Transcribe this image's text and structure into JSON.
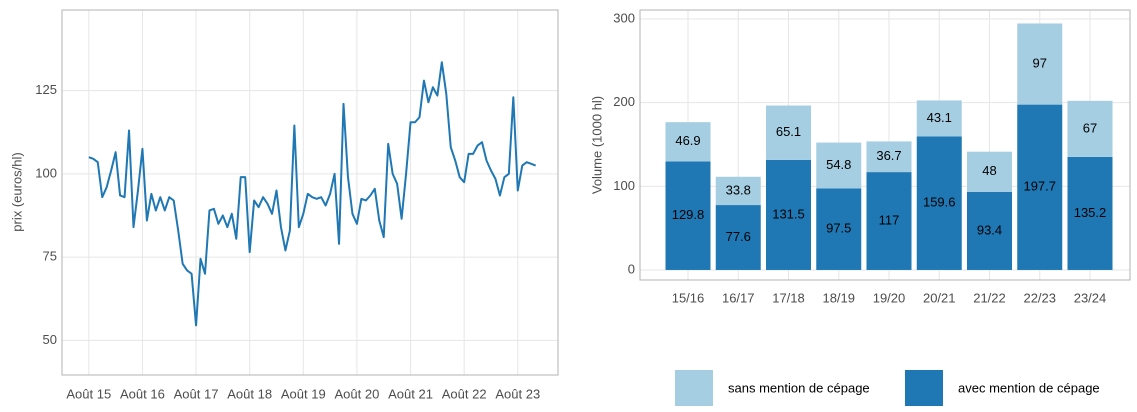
{
  "chart_data": [
    {
      "type": "line",
      "ylabel": "prix (euros/hl)",
      "x": [
        "2015-08",
        "2015-09",
        "2015-10",
        "2015-11",
        "2015-12",
        "2016-01",
        "2016-02",
        "2016-03",
        "2016-04",
        "2016-05",
        "2016-06",
        "2016-07",
        "2016-08",
        "2016-09",
        "2016-10",
        "2016-11",
        "2016-12",
        "2017-01",
        "2017-02",
        "2017-03",
        "2017-04",
        "2017-05",
        "2017-06",
        "2017-07",
        "2017-08",
        "2017-09",
        "2017-10",
        "2017-11",
        "2017-12",
        "2018-01",
        "2018-02",
        "2018-03",
        "2018-04",
        "2018-05",
        "2018-06",
        "2018-07",
        "2018-08",
        "2018-09",
        "2018-10",
        "2018-11",
        "2018-12",
        "2019-01",
        "2019-02",
        "2019-03",
        "2019-04",
        "2019-05",
        "2019-06",
        "2019-07",
        "2019-08",
        "2019-09",
        "2019-10",
        "2019-11",
        "2019-12",
        "2020-01",
        "2020-02",
        "2020-03",
        "2020-04",
        "2020-05",
        "2020-06",
        "2020-07",
        "2020-08",
        "2020-09",
        "2020-10",
        "2020-11",
        "2020-12",
        "2021-01",
        "2021-02",
        "2021-03",
        "2021-04",
        "2021-05",
        "2021-06",
        "2021-07",
        "2021-08",
        "2021-09",
        "2021-10",
        "2021-11",
        "2021-12",
        "2022-01",
        "2022-02",
        "2022-03",
        "2022-04",
        "2022-05",
        "2022-06",
        "2022-07",
        "2022-08",
        "2022-09",
        "2022-10",
        "2022-11",
        "2022-12",
        "2023-01",
        "2023-02",
        "2023-03",
        "2023-04",
        "2023-05",
        "2023-06",
        "2023-07",
        "2023-08",
        "2023-09",
        "2023-10",
        "2023-11",
        "2023-12"
      ],
      "series": [
        {
          "name": "prix",
          "color": "#1f78b4",
          "values": [
            105,
            104.5,
            103.5,
            93,
            96,
            101,
            106.5,
            93.5,
            93,
            113,
            84,
            95,
            107.5,
            86,
            94,
            89,
            93,
            89,
            93,
            92,
            83,
            73,
            71,
            70,
            54.5,
            74.5,
            70,
            89,
            89.5,
            85,
            87.5,
            84,
            88,
            80.5,
            99,
            99,
            76.5,
            92,
            90,
            93,
            91,
            88,
            95,
            84,
            77,
            83,
            114.5,
            84,
            88,
            94,
            93,
            92.5,
            93,
            90.5,
            94,
            100,
            79,
            121,
            99,
            88,
            85,
            92.5,
            92,
            93.5,
            95.5,
            86,
            81,
            109,
            100,
            97,
            86.5,
            100,
            115.5,
            115.5,
            117,
            128,
            121.5,
            126,
            123.5,
            133.5,
            124,
            108,
            104,
            99,
            97.5,
            106,
            106,
            108.5,
            109.5,
            104,
            101,
            98.5,
            93.5,
            99,
            100,
            123,
            95,
            102.5,
            103.5,
            103,
            102.5
          ]
        }
      ],
      "xlim": [
        "2015-02",
        "2024-05"
      ],
      "xticks": [
        {
          "value": "2015-08",
          "label": "Août 15"
        },
        {
          "value": "2016-08",
          "label": "Août 16"
        },
        {
          "value": "2017-08",
          "label": "Août 17"
        },
        {
          "value": "2018-08",
          "label": "Août 18"
        },
        {
          "value": "2019-08",
          "label": "Août 19"
        },
        {
          "value": "2020-08",
          "label": "Août 20"
        },
        {
          "value": "2021-08",
          "label": "Août 21"
        },
        {
          "value": "2022-08",
          "label": "Août 22"
        },
        {
          "value": "2023-08",
          "label": "Août 23"
        }
      ],
      "ylim": [
        39.6,
        149.2
      ],
      "yticks": [
        50,
        75,
        100,
        125
      ],
      "grid": true
    },
    {
      "type": "stacked_bar",
      "ylabel": "Volume (1000 hl)",
      "categories": [
        "15/16",
        "16/17",
        "17/18",
        "18/19",
        "19/20",
        "20/21",
        "21/22",
        "22/23",
        "23/24"
      ],
      "series": [
        {
          "name": "sans mention de cépage",
          "color": "#a6cee3",
          "values": [
            46.9,
            33.8,
            65.1,
            54.8,
            36.7,
            43.1,
            48,
            97,
            67
          ]
        },
        {
          "name": "avec mention de cépage",
          "color": "#1f78b4",
          "values": [
            129.8,
            77.6,
            131.5,
            97.5,
            117,
            159.6,
            93.4,
            197.7,
            135.2
          ]
        }
      ],
      "ylim": [
        -12,
        310.8
      ],
      "yticks": [
        0,
        100,
        200,
        300
      ],
      "grid": true,
      "legend": "bottom"
    }
  ]
}
